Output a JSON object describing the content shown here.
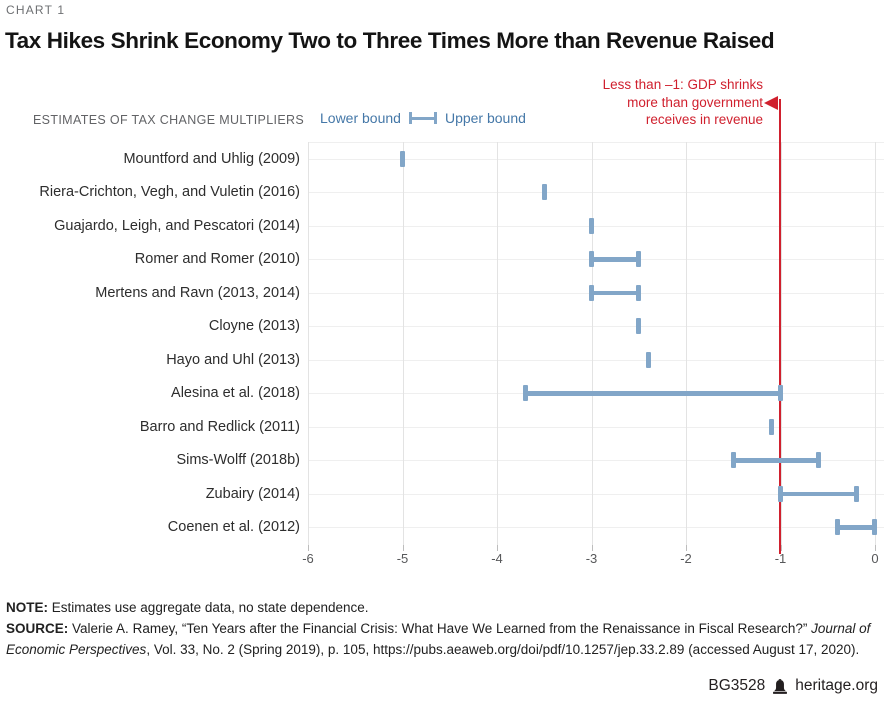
{
  "header": {
    "chart_label": "CHART 1",
    "title": "Tax Hikes Shrink Economy Two to Three Times More than Revenue Raised"
  },
  "annotation": {
    "lines": [
      "Less than –1: GDP shrinks",
      "more than government",
      "receives in revenue"
    ],
    "color": "#d0202e"
  },
  "chart_data": {
    "type": "range-dot",
    "axis_title": "ESTIMATES OF TAX CHANGE MULTIPLIERS",
    "legend": {
      "lower": "Lower bound",
      "upper": "Upper bound"
    },
    "xlim": [
      -6,
      0
    ],
    "xticks": [
      "-6",
      "-5",
      "-4",
      "-3",
      "-2",
      "-1",
      "0"
    ],
    "xtick_values": [
      -6,
      -5,
      -4,
      -3,
      -2,
      -1,
      0
    ],
    "reference_line": -1,
    "grid": "vertical",
    "rows": [
      {
        "label": "Mountford and Uhlig (2009)",
        "lower": -5.0,
        "upper": -5.0
      },
      {
        "label": "Riera-Crichton, Vegh, and Vuletin (2016)",
        "lower": -3.5,
        "upper": -3.5
      },
      {
        "label": "Guajardo, Leigh, and Pescatori (2014)",
        "lower": -3.0,
        "upper": -3.0
      },
      {
        "label": "Romer and Romer (2010)",
        "lower": -3.0,
        "upper": -2.5
      },
      {
        "label": "Mertens and Ravn (2013, 2014)",
        "lower": -3.0,
        "upper": -2.5
      },
      {
        "label": "Cloyne (2013)",
        "lower": -2.5,
        "upper": -2.5
      },
      {
        "label": "Hayo and Uhl (2013)",
        "lower": -2.4,
        "upper": -2.4
      },
      {
        "label": "Alesina et al. (2018)",
        "lower": -3.7,
        "upper": -1.0
      },
      {
        "label": "Barro and Redlick (2011)",
        "lower": -1.1,
        "upper": -1.1
      },
      {
        "label": "Sims-Wolff (2018b)",
        "lower": -1.5,
        "upper": -0.6
      },
      {
        "label": "Zubairy (2014)",
        "lower": -1.0,
        "upper": -0.2
      },
      {
        "label": "Coenen et al. (2012)",
        "lower": -0.4,
        "upper": 0.0
      }
    ]
  },
  "footer": {
    "note_label": "NOTE:",
    "note": "Estimates use aggregate data, no state dependence.",
    "source_label": "SOURCE:",
    "source_before": "Valerie A. Ramey, “Ten Years after the Financial Crisis: What Have We Learned from the Renaissance in Fiscal Research?” ",
    "source_italic": "Journal of Economic Perspectives",
    "source_after": ", Vol. 33, No. 2 (Spring 2019), p. 105, https://pubs.aeaweb.org/doi/pdf/10.1257/jep.33.2.89 (accessed August 17, 2020).",
    "doc_id": "BG3528",
    "site": "heritage.org"
  },
  "colors": {
    "accent_red": "#d0202e",
    "bound_blue": "#82a6c8",
    "legend_text_blue": "#4578a8"
  }
}
